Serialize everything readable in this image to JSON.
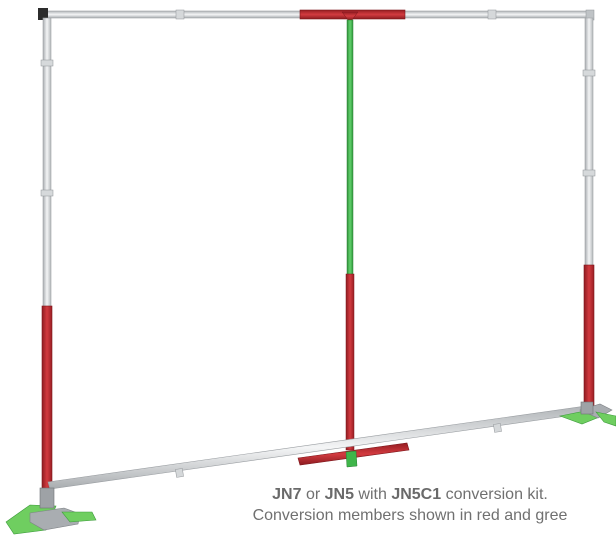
{
  "caption": {
    "line1": {
      "product_a": "JN7",
      "joiner_or": " or ",
      "product_b": "JN5",
      "joiner_with": " with ",
      "product_c": "JN5C1",
      "suffix": " conversion kit."
    },
    "line2": "Conversion members shown in red and gree"
  },
  "colors": {
    "frame_silver": "#c9ccce",
    "frame_highlight": "#f2f3f4",
    "conversion_red": "#b8232a",
    "conversion_green": "#3fb54a",
    "foot_green": "#6fce60",
    "foot_gray": "#a9adb1",
    "caption_text": "#707070"
  }
}
